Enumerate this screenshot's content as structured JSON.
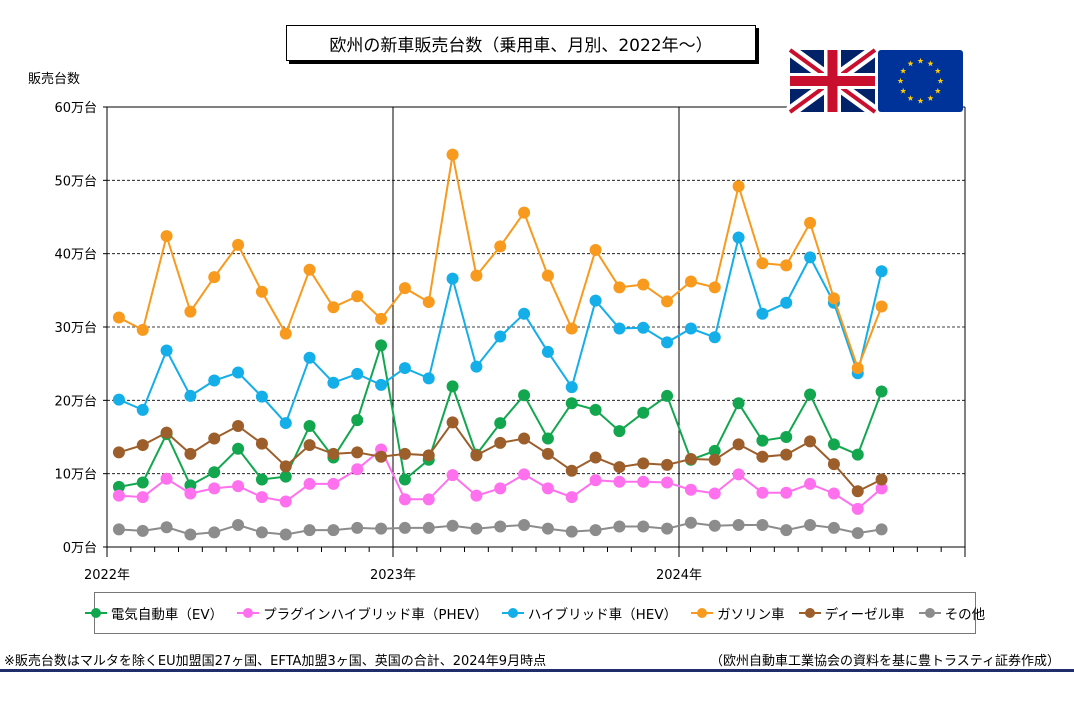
{
  "chart_data": {
    "type": "line",
    "title": "欧州の新車販売台数（乗用車、月別、2022年～）",
    "ylabel": "販売台数",
    "ylim": [
      0,
      60
    ],
    "yticks": [
      "0万台",
      "10万台",
      "20万台",
      "30万台",
      "40万台",
      "50万台",
      "60万台"
    ],
    "xticks": [
      "2022年",
      "2023年",
      "2024年"
    ],
    "grid": "horizontal-dashed",
    "legend_position": "bottom",
    "x_start": "2022-01",
    "series": [
      {
        "name": "電気自動車（EV）",
        "color": "#12a74f",
        "values": [
          8.2,
          8.8,
          15.4,
          8.4,
          10.2,
          13.4,
          9.2,
          9.6,
          16.5,
          12.2,
          17.3,
          27.5,
          9.2,
          11.9,
          21.9,
          12.6,
          16.9,
          20.7,
          14.8,
          19.6,
          18.7,
          15.8,
          18.3,
          20.6,
          11.9,
          13.1,
          19.6,
          14.5,
          15.0,
          20.8,
          14.0,
          12.6,
          21.2
        ]
      },
      {
        "name": "プラグインハイブリッド車（PHEV）",
        "color": "#ff70ee",
        "values": [
          7.0,
          6.8,
          9.3,
          7.3,
          8.0,
          8.3,
          6.8,
          6.2,
          8.6,
          8.6,
          10.6,
          13.3,
          6.5,
          6.5,
          9.8,
          7.0,
          8.0,
          9.9,
          8.0,
          6.8,
          9.1,
          8.9,
          8.9,
          8.8,
          7.8,
          7.3,
          9.9,
          7.4,
          7.4,
          8.6,
          7.3,
          5.2,
          8.0
        ]
      },
      {
        "name": "ハイブリッド車（HEV）",
        "color": "#14aee9",
        "values": [
          20.1,
          18.7,
          26.8,
          20.6,
          22.7,
          23.8,
          20.5,
          16.9,
          25.8,
          22.4,
          23.6,
          22.1,
          24.4,
          23.0,
          36.6,
          24.6,
          28.7,
          31.8,
          26.6,
          21.8,
          33.6,
          29.8,
          29.9,
          27.9,
          29.8,
          28.6,
          42.2,
          31.8,
          33.3,
          39.5,
          33.3,
          23.7,
          37.6
        ]
      },
      {
        "name": "ガソリン車",
        "color": "#f79a1e",
        "values": [
          31.3,
          29.6,
          42.4,
          32.1,
          36.8,
          41.2,
          34.8,
          29.1,
          37.8,
          32.7,
          34.2,
          31.1,
          35.3,
          33.4,
          53.5,
          37.0,
          41.0,
          45.6,
          37.0,
          29.8,
          40.5,
          35.4,
          35.8,
          33.5,
          36.2,
          35.4,
          49.2,
          38.7,
          38.4,
          44.2,
          33.9,
          24.4,
          32.8
        ]
      },
      {
        "name": "ディーゼル車",
        "color": "#9c5f2b",
        "values": [
          12.9,
          13.9,
          15.6,
          12.7,
          14.8,
          16.5,
          14.1,
          11.0,
          13.9,
          12.7,
          12.9,
          12.3,
          12.7,
          12.5,
          17.0,
          12.5,
          14.2,
          14.8,
          12.7,
          10.4,
          12.2,
          10.9,
          11.4,
          11.2,
          12.0,
          11.9,
          14.0,
          12.3,
          12.6,
          14.4,
          11.3,
          7.6,
          9.2
        ]
      },
      {
        "name": "その他",
        "color": "#8c8c8c",
        "values": [
          2.4,
          2.2,
          2.7,
          1.7,
          2.0,
          3.0,
          2.0,
          1.7,
          2.3,
          2.3,
          2.6,
          2.5,
          2.6,
          2.6,
          2.9,
          2.5,
          2.8,
          3.0,
          2.5,
          2.1,
          2.3,
          2.8,
          2.8,
          2.5,
          3.3,
          2.9,
          3.0,
          3.0,
          2.3,
          3.0,
          2.6,
          1.9,
          2.4
        ]
      }
    ]
  },
  "footnote": "※販売台数はマルタを除くEU加盟国27ヶ国、EFTA加盟3ヶ国、英国の合計、2024年9月時点",
  "source": "（欧州自動車工業協会の資料を基に豊トラスティ証券作成）",
  "flags": [
    {
      "name": "uk-flag-icon",
      "colors": [
        "#012169",
        "#ffffff",
        "#c8102e"
      ]
    },
    {
      "name": "eu-flag-icon",
      "colors": [
        "#003399",
        "#ffcc00"
      ]
    }
  ]
}
